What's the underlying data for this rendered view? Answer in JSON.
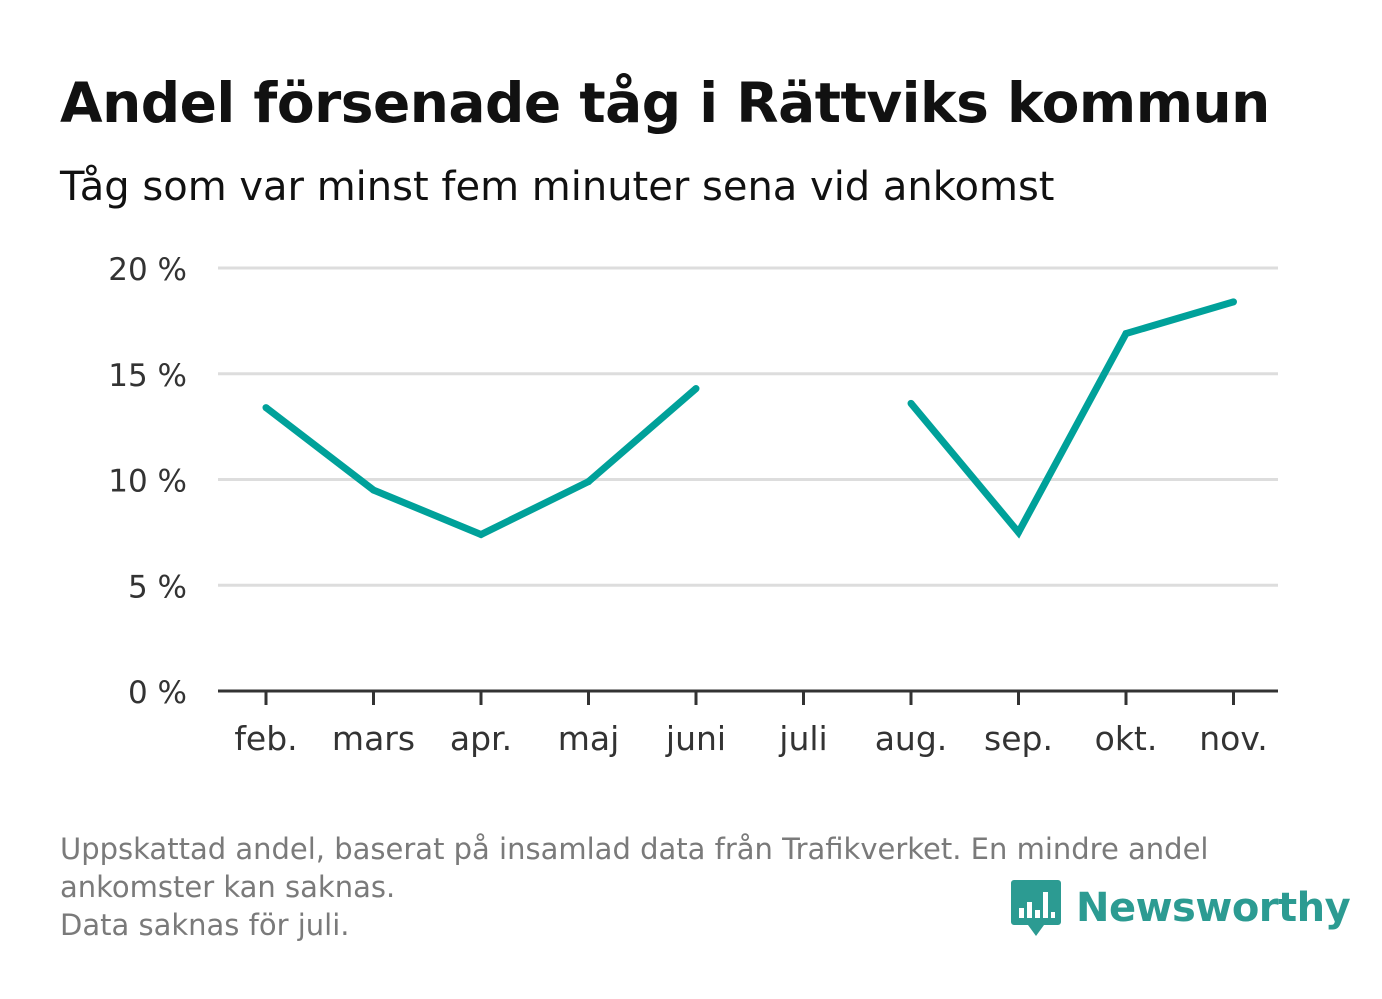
{
  "title": "Andel försenade tåg i Rättviks kommun",
  "subtitle": "Tåg som var minst fem minuter sena vid ankomst",
  "colors": {
    "line": "#00a19a",
    "grid": "#dddddd",
    "axis": "#333333",
    "title": "#111111",
    "footer": "#7a7a7a",
    "brand": "#2c9b92"
  },
  "footer": {
    "line1": "Uppskattad andel, baserat på insamlad data från Trafikverket. En mindre andel ankomster kan saknas.",
    "line2": "Data saknas för juli."
  },
  "brand": {
    "name": "Newsworthy",
    "icon": "bar-chart-speech-bubble-icon"
  },
  "chart_data": {
    "type": "line",
    "categories": [
      "feb.",
      "mars",
      "apr.",
      "maj",
      "juni",
      "juli",
      "aug.",
      "sep.",
      "okt.",
      "nov."
    ],
    "series": [
      {
        "values": [
          13.4,
          9.5,
          7.4,
          9.9,
          14.3,
          null,
          13.6,
          7.5,
          16.9,
          18.4
        ]
      }
    ],
    "ylim": [
      0,
      20
    ],
    "yticks": [
      0,
      5,
      10,
      15,
      20
    ],
    "ytick_labels": [
      "0 %",
      "5 %",
      "10 %",
      "15 %",
      "20 %"
    ],
    "grid": true,
    "legend": "none"
  }
}
